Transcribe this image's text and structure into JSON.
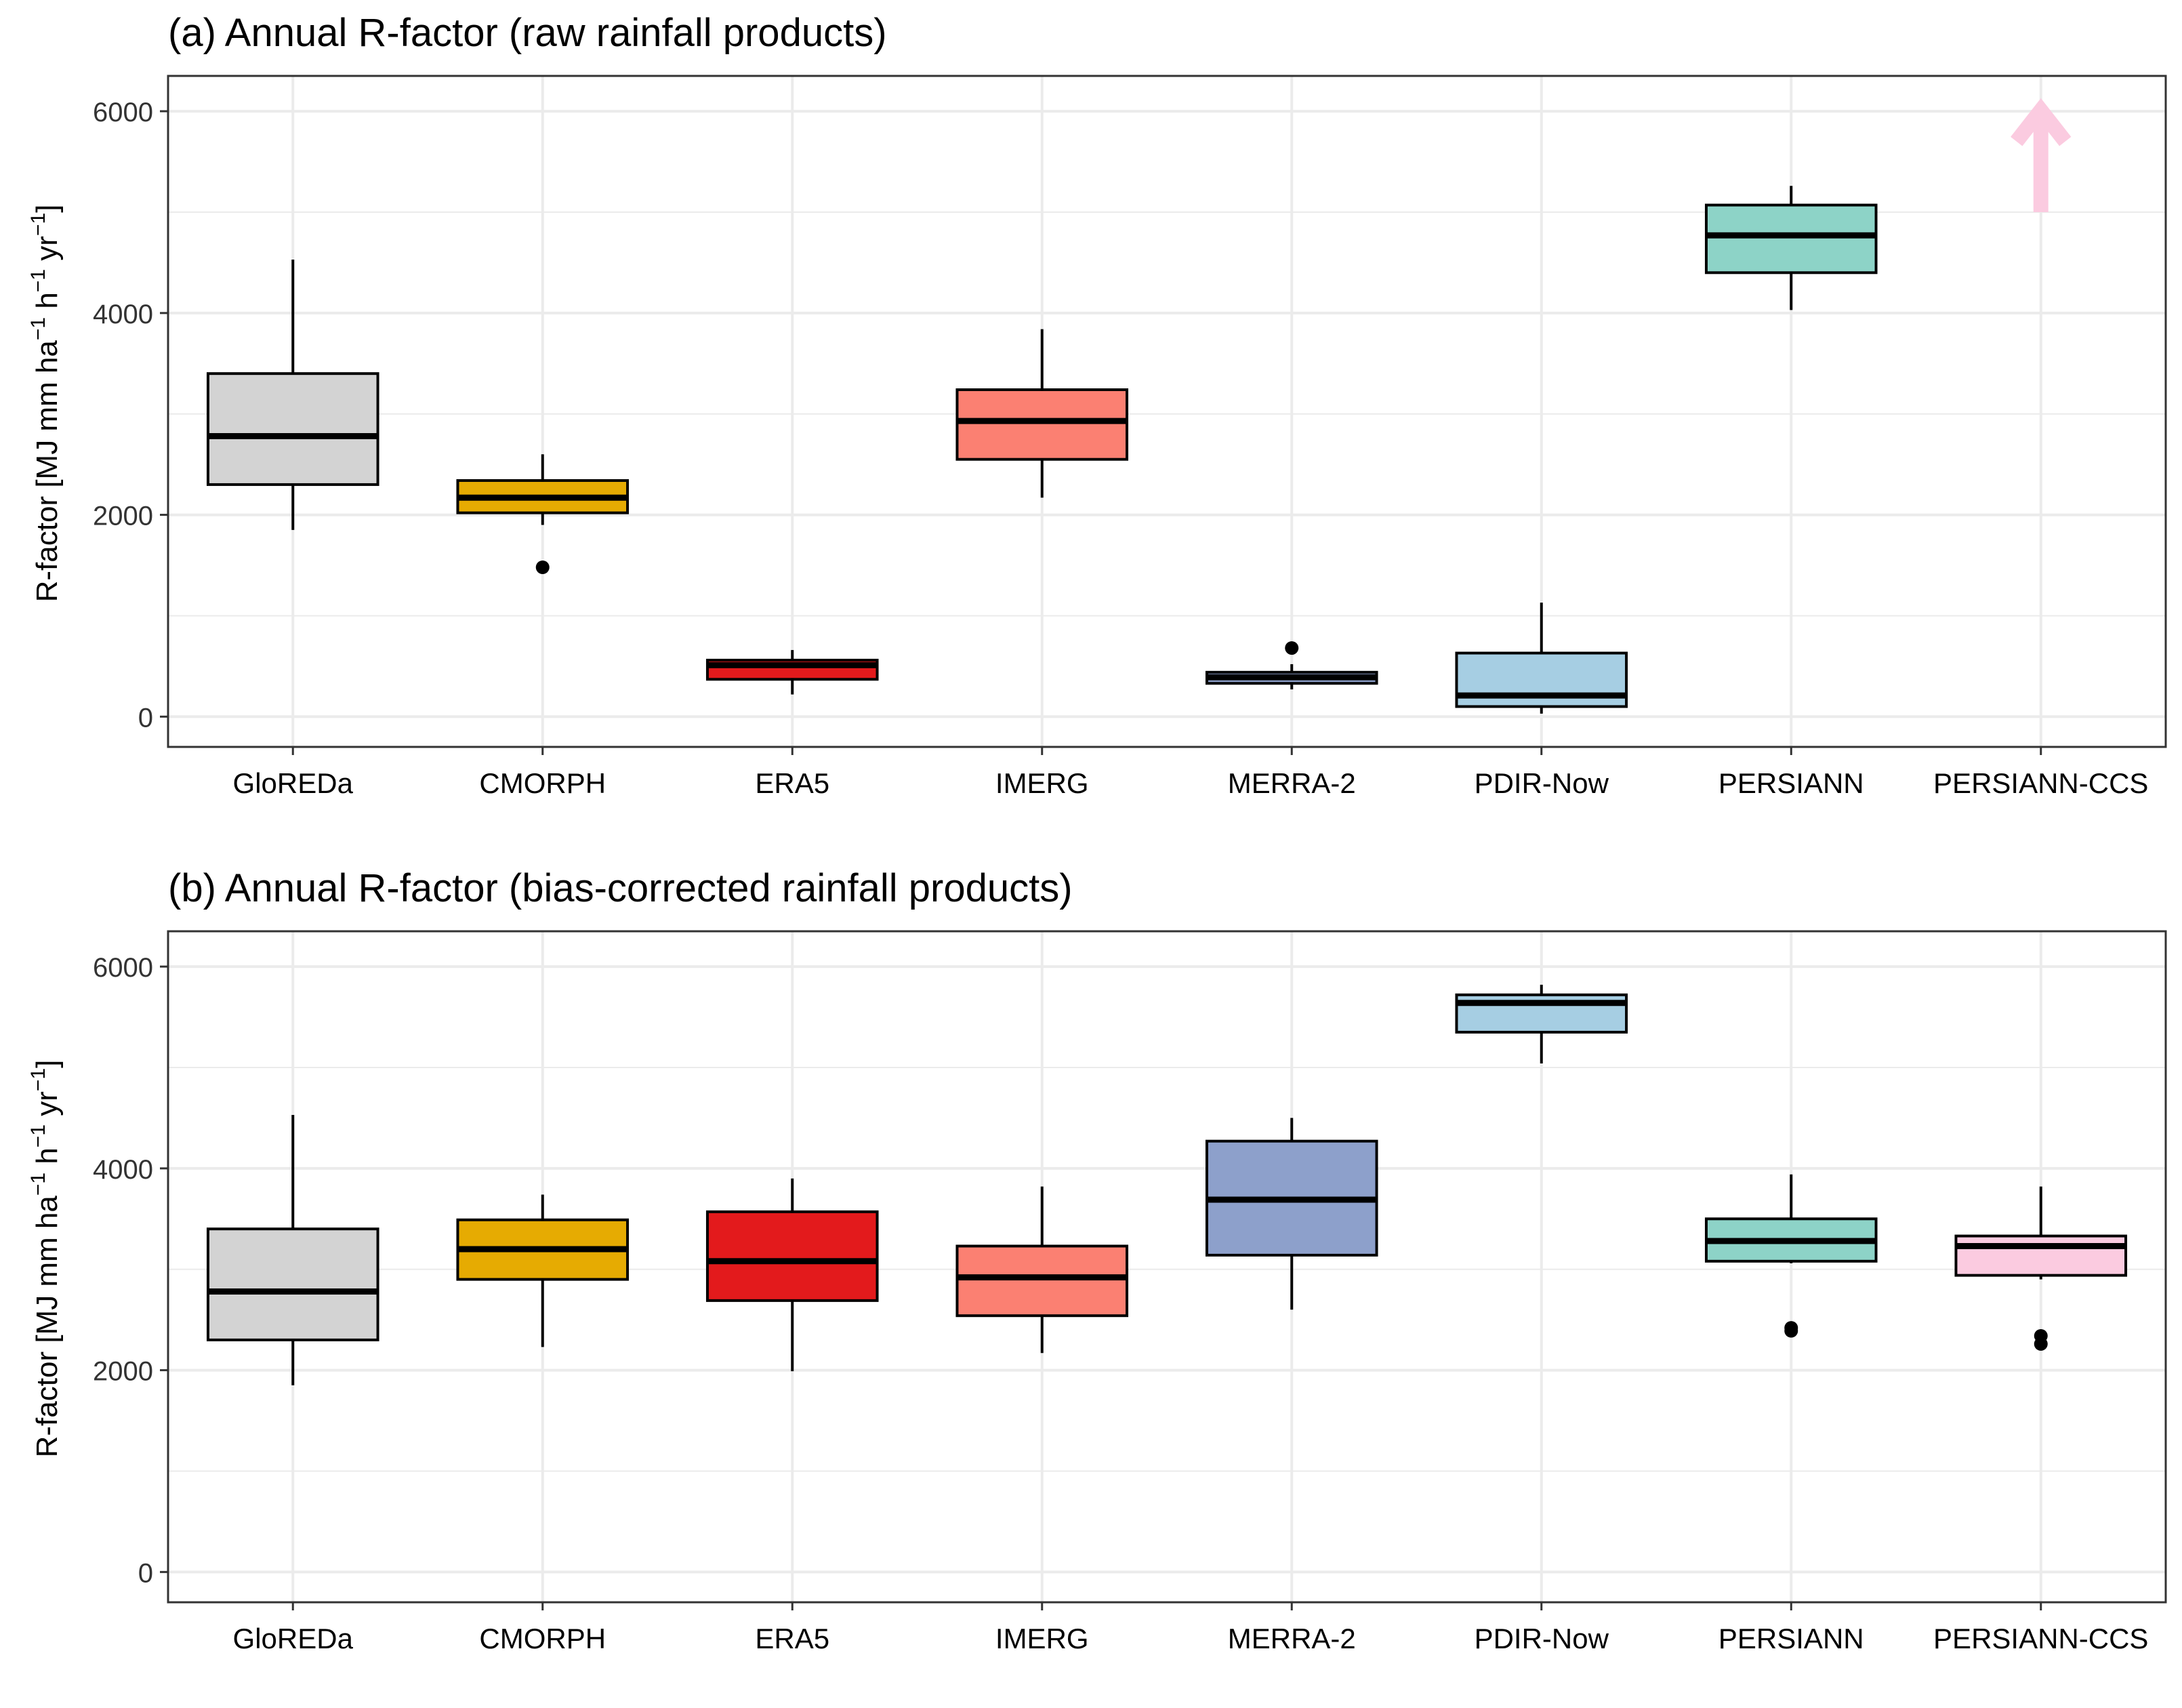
{
  "chart_data": [
    {
      "type": "box",
      "title": "(a) Annual R-factor (raw rainfall products)",
      "xlabel": "",
      "ylabel": "R-factor [MJ mm  ha⁻¹ h⁻¹ yr⁻¹]",
      "ylim": [
        -300,
        6350
      ],
      "yticks": [
        0,
        2000,
        4000,
        6000
      ],
      "grid": true,
      "categories": [
        "GloREDa",
        "CMORPH",
        "ERA5",
        "IMERG",
        "MERRA-2",
        "PDIR-Now",
        "PERSIANN",
        "PERSIANN-CCS"
      ],
      "boxes": [
        {
          "name": "GloREDa",
          "color": "#d3d3d3",
          "min": 1850,
          "q1": 2300,
          "median": 2780,
          "q3": 3400,
          "max": 4530,
          "outliers": []
        },
        {
          "name": "CMORPH",
          "color": "#e6ab02",
          "min": 1900,
          "q1": 2020,
          "median": 2170,
          "q3": 2340,
          "max": 2600,
          "outliers": [
            1480
          ]
        },
        {
          "name": "ERA5",
          "color": "#e31a1c",
          "min": 220,
          "q1": 370,
          "median": 510,
          "q3": 560,
          "max": 660,
          "outliers": []
        },
        {
          "name": "IMERG",
          "color": "#fb8072",
          "min": 2170,
          "q1": 2550,
          "median": 2930,
          "q3": 3240,
          "max": 3840,
          "outliers": []
        },
        {
          "name": "MERRA-2",
          "color": "#8da0cb",
          "min": 270,
          "q1": 330,
          "median": 390,
          "q3": 440,
          "max": 520,
          "outliers": [
            680
          ]
        },
        {
          "name": "PDIR-Now",
          "color": "#a6cee3",
          "min": 30,
          "q1": 100,
          "median": 210,
          "q3": 630,
          "max": 1130,
          "outliers": []
        },
        {
          "name": "PERSIANN",
          "color": "#8dd3c7",
          "min": 4030,
          "q1": 4400,
          "median": 4770,
          "q3": 5070,
          "max": 5260,
          "outliers": []
        }
      ],
      "offscale_indicator": {
        "category": "PERSIANN-CCS",
        "color": "#fbcbe0",
        "symbol": "up-arrow"
      }
    },
    {
      "type": "box",
      "title": "(b) Annual R-factor (bias-corrected rainfall products)",
      "xlabel": "",
      "ylabel": "R-factor [MJ mm  ha⁻¹ h⁻¹ yr⁻¹]",
      "ylim": [
        -300,
        6350
      ],
      "yticks": [
        0,
        2000,
        4000,
        6000
      ],
      "grid": true,
      "categories": [
        "GloREDa",
        "CMORPH",
        "ERA5",
        "IMERG",
        "MERRA-2",
        "PDIR-Now",
        "PERSIANN",
        "PERSIANN-CCS"
      ],
      "boxes": [
        {
          "name": "GloREDa",
          "color": "#d3d3d3",
          "min": 1850,
          "q1": 2300,
          "median": 2780,
          "q3": 3400,
          "max": 4530,
          "outliers": []
        },
        {
          "name": "CMORPH",
          "color": "#e6ab02",
          "min": 2230,
          "q1": 2900,
          "median": 3200,
          "q3": 3490,
          "max": 3740,
          "outliers": []
        },
        {
          "name": "ERA5",
          "color": "#e31a1c",
          "min": 1990,
          "q1": 2690,
          "median": 3080,
          "q3": 3570,
          "max": 3900,
          "outliers": []
        },
        {
          "name": "IMERG",
          "color": "#fb8072",
          "min": 2170,
          "q1": 2540,
          "median": 2920,
          "q3": 3230,
          "max": 3820,
          "outliers": []
        },
        {
          "name": "MERRA-2",
          "color": "#8da0cb",
          "min": 2600,
          "q1": 3140,
          "median": 3690,
          "q3": 4270,
          "max": 4500,
          "outliers": []
        },
        {
          "name": "PDIR-Now",
          "color": "#a6cee3",
          "min": 5040,
          "q1": 5350,
          "median": 5640,
          "q3": 5720,
          "max": 5820,
          "outliers": []
        },
        {
          "name": "PERSIANN",
          "color": "#8dd3c7",
          "min": 3060,
          "q1": 3080,
          "median": 3280,
          "q3": 3500,
          "max": 3940,
          "outliers": [
            2390,
            2420
          ]
        },
        {
          "name": "PERSIANN-CCS",
          "color": "#fbcbe0",
          "min": 2900,
          "q1": 2940,
          "median": 3230,
          "q3": 3330,
          "max": 3820,
          "outliers": [
            2260,
            2340
          ]
        }
      ]
    }
  ]
}
